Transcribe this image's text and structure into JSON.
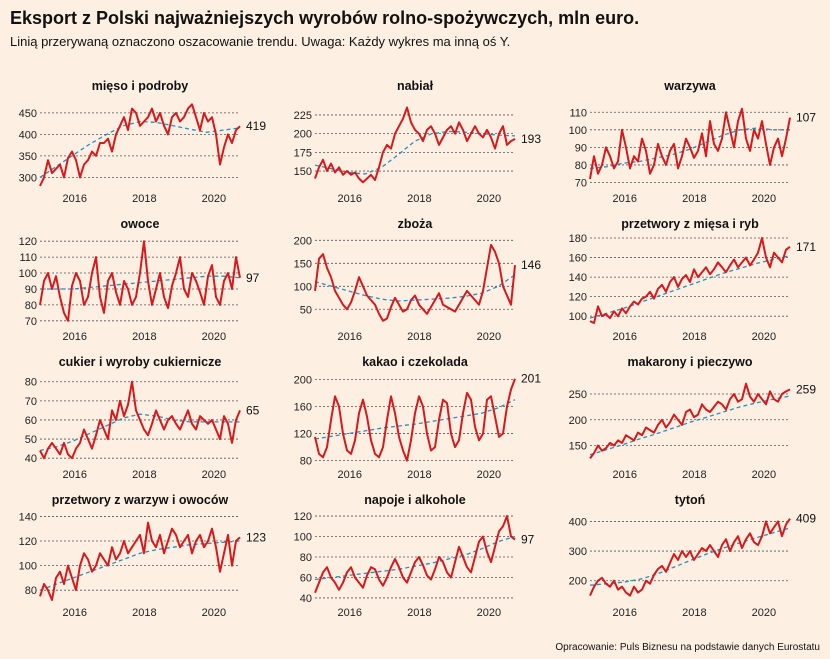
{
  "header": {
    "title": "Eksport z Polski najważniejszych wyrobów rolno-spożywczych, mln euro.",
    "subtitle": "Linią przerywaną oznaczono oszacowanie trendu. Uwaga: Każdy wykres ma inną oś Y."
  },
  "footer": {
    "source": "Opracowanie: Puls Biznesu na podstawie danych Eurostatu"
  },
  "colors": {
    "series": "#d7191c",
    "trend": "#2b8cbe",
    "grid": "#555555",
    "background": "#fdf0e3"
  },
  "chart_data": [
    {
      "type": "line",
      "title": "mięso i podroby",
      "x_range": [
        2015,
        2020.75
      ],
      "xticks": [
        "2016",
        "2018",
        "2020"
      ],
      "ylim": [
        280,
        480
      ],
      "yticks": [
        "300",
        "350",
        "400",
        "450"
      ],
      "last_label": "419",
      "values": [
        280,
        300,
        340,
        310,
        320,
        330,
        300,
        345,
        360,
        340,
        300,
        330,
        340,
        360,
        350,
        380,
        380,
        390,
        360,
        400,
        420,
        440,
        410,
        460,
        450,
        420,
        430,
        440,
        460,
        430,
        450,
        420,
        400,
        440,
        450,
        430,
        440,
        460,
        470,
        440,
        410,
        450,
        430,
        440,
        400,
        330,
        370,
        400,
        380,
        410,
        419
      ],
      "trend": [
        300,
        326,
        352,
        378,
        400,
        420,
        430,
        428,
        420,
        412,
        405,
        410,
        415
      ]
    },
    {
      "type": "line",
      "title": "nabiał",
      "x_range": [
        2015,
        2020.75
      ],
      "xticks": [
        "2016",
        "2018",
        "2020"
      ],
      "ylim": [
        130,
        245
      ],
      "yticks": [
        "150",
        "175",
        "200",
        "225"
      ],
      "last_label": "193",
      "values": [
        140,
        155,
        165,
        150,
        160,
        148,
        155,
        145,
        150,
        145,
        148,
        140,
        135,
        140,
        145,
        138,
        155,
        175,
        185,
        180,
        200,
        210,
        220,
        235,
        215,
        205,
        200,
        190,
        205,
        210,
        200,
        185,
        195,
        205,
        210,
        200,
        215,
        205,
        190,
        200,
        210,
        200,
        195,
        205,
        195,
        180,
        200,
        210,
        185,
        190,
        193
      ],
      "trend": [
        158,
        153,
        148,
        146,
        155,
        172,
        190,
        200,
        203,
        202,
        200,
        198,
        197
      ]
    },
    {
      "type": "line",
      "title": "warzywa",
      "x_range": [
        2015,
        2020.75
      ],
      "xticks": [
        "2016",
        "2018",
        "2020"
      ],
      "ylim": [
        68,
        117
      ],
      "yticks": [
        "70",
        "80",
        "90",
        "100",
        "110"
      ],
      "last_label": "107",
      "values": [
        72,
        85,
        75,
        80,
        90,
        85,
        78,
        82,
        100,
        90,
        78,
        85,
        82,
        95,
        88,
        75,
        80,
        92,
        85,
        80,
        88,
        92,
        78,
        85,
        95,
        90,
        84,
        88,
        98,
        85,
        105,
        92,
        88,
        95,
        110,
        100,
        90,
        105,
        112,
        95,
        88,
        100,
        95,
        105,
        92,
        80,
        90,
        95,
        85,
        95,
        107
      ],
      "trend": [
        78,
        79,
        81,
        82,
        84,
        86,
        89,
        93,
        97,
        100,
        101,
        100,
        100
      ]
    },
    {
      "type": "line",
      "title": "owoce",
      "x_range": [
        2015,
        2020.75
      ],
      "xticks": [
        "2016",
        "2018",
        "2020"
      ],
      "ylim": [
        68,
        122
      ],
      "yticks": [
        "70",
        "80",
        "90",
        "100",
        "110",
        "120"
      ],
      "last_label": "97",
      "values": [
        80,
        95,
        100,
        90,
        98,
        85,
        75,
        70,
        92,
        100,
        95,
        80,
        85,
        100,
        110,
        85,
        75,
        95,
        100,
        88,
        80,
        95,
        90,
        80,
        85,
        100,
        120,
        95,
        80,
        90,
        100,
        85,
        78,
        92,
        100,
        110,
        90,
        85,
        100,
        95,
        88,
        80,
        98,
        105,
        85,
        80,
        95,
        100,
        90,
        110,
        97
      ],
      "trend": [
        90,
        90,
        90,
        91,
        92,
        93,
        94,
        95,
        96,
        97,
        98,
        98,
        97
      ]
    },
    {
      "type": "line",
      "title": "zboża",
      "x_range": [
        2015,
        2020.75
      ],
      "xticks": [
        "2016",
        "2018",
        "2020"
      ],
      "ylim": [
        18,
        205
      ],
      "yticks": [
        "50",
        "100",
        "150",
        "200"
      ],
      "last_label": "146",
      "values": [
        90,
        160,
        170,
        140,
        120,
        90,
        75,
        60,
        50,
        65,
        90,
        120,
        100,
        80,
        70,
        60,
        40,
        25,
        30,
        55,
        75,
        60,
        45,
        50,
        70,
        80,
        60,
        50,
        40,
        55,
        70,
        85,
        60,
        55,
        50,
        45,
        60,
        75,
        90,
        80,
        70,
        60,
        90,
        140,
        190,
        175,
        150,
        100,
        80,
        60,
        146
      ],
      "trend": [
        110,
        100,
        90,
        80,
        72,
        68,
        70,
        72,
        74,
        78,
        85,
        100,
        125
      ]
    },
    {
      "type": "line",
      "title": "przetwory z mięsa i ryb",
      "x_range": [
        2015,
        2020.75
      ],
      "xticks": [
        "2016",
        "2018",
        "2020"
      ],
      "ylim": [
        92,
        180
      ],
      "yticks": [
        "100",
        "120",
        "140",
        "160",
        "180"
      ],
      "last_label": "171",
      "values": [
        95,
        93,
        110,
        100,
        102,
        98,
        105,
        100,
        108,
        103,
        110,
        115,
        112,
        118,
        120,
        125,
        118,
        128,
        132,
        125,
        135,
        140,
        130,
        138,
        142,
        135,
        148,
        140,
        145,
        150,
        143,
        148,
        155,
        150,
        145,
        152,
        158,
        150,
        155,
        160,
        152,
        158,
        165,
        180,
        160,
        150,
        165,
        160,
        155,
        168,
        171
      ],
      "trend": [
        98,
        103,
        108,
        114,
        120,
        126,
        132,
        138,
        144,
        149,
        154,
        158,
        162
      ]
    },
    {
      "type": "line",
      "title": "cukier i wyroby cukiernicze",
      "x_range": [
        2015,
        2020.75
      ],
      "xticks": [
        "2016",
        "2018",
        "2020"
      ],
      "ylim": [
        38,
        83
      ],
      "yticks": [
        "40",
        "50",
        "60",
        "70",
        "80"
      ],
      "last_label": "65",
      "values": [
        44,
        40,
        45,
        48,
        45,
        42,
        48,
        42,
        40,
        45,
        48,
        55,
        50,
        45,
        52,
        60,
        55,
        50,
        65,
        60,
        70,
        62,
        68,
        80,
        65,
        60,
        55,
        52,
        58,
        65,
        60,
        55,
        60,
        62,
        58,
        55,
        60,
        65,
        58,
        55,
        62,
        60,
        58,
        60,
        55,
        50,
        62,
        58,
        48,
        60,
        65
      ],
      "trend": [
        44,
        46,
        49,
        53,
        57,
        61,
        63,
        62,
        60,
        59,
        59,
        59,
        59
      ]
    },
    {
      "type": "line",
      "title": "kakao i czekolada",
      "x_range": [
        2015,
        2020.75
      ],
      "xticks": [
        "2016",
        "2018",
        "2020"
      ],
      "ylim": [
        78,
        205
      ],
      "yticks": [
        "80",
        "120",
        "160",
        "200"
      ],
      "last_label": "201",
      "values": [
        115,
        90,
        85,
        100,
        140,
        175,
        160,
        120,
        95,
        90,
        110,
        150,
        170,
        145,
        110,
        90,
        85,
        100,
        140,
        175,
        150,
        115,
        95,
        80,
        110,
        150,
        175,
        160,
        120,
        95,
        100,
        140,
        170,
        165,
        120,
        100,
        110,
        150,
        180,
        170,
        130,
        110,
        120,
        170,
        175,
        145,
        115,
        120,
        160,
        185,
        201
      ],
      "trend": [
        112,
        116,
        120,
        124,
        128,
        131,
        134,
        138,
        142,
        146,
        150,
        158,
        170
      ]
    },
    {
      "type": "line",
      "title": "makarony i pieczywo",
      "x_range": [
        2015,
        2020.75
      ],
      "xticks": [
        "2016",
        "2018",
        "2020"
      ],
      "ylim": [
        118,
        285
      ],
      "yticks": [
        "150",
        "200",
        "250"
      ],
      "last_label": "259",
      "values": [
        125,
        135,
        150,
        140,
        145,
        155,
        150,
        160,
        155,
        170,
        165,
        160,
        175,
        170,
        185,
        180,
        175,
        190,
        200,
        185,
        195,
        210,
        200,
        190,
        215,
        220,
        205,
        210,
        230,
        220,
        215,
        225,
        235,
        230,
        220,
        240,
        250,
        235,
        240,
        270,
        245,
        235,
        250,
        240,
        230,
        255,
        240,
        235,
        250,
        255,
        259
      ],
      "trend": [
        132,
        142,
        152,
        163,
        173,
        184,
        195,
        205,
        215,
        225,
        233,
        240,
        246
      ]
    },
    {
      "type": "line",
      "title": "przetwory z warzyw i owoców",
      "x_range": [
        2015,
        2020.75
      ],
      "xticks": [
        "2016",
        "2018",
        "2020"
      ],
      "ylim": [
        72,
        142
      ],
      "yticks": [
        "80",
        "100",
        "120",
        "140"
      ],
      "last_label": "123",
      "values": [
        75,
        85,
        80,
        72,
        90,
        95,
        85,
        100,
        90,
        80,
        100,
        110,
        105,
        95,
        100,
        110,
        105,
        100,
        115,
        105,
        110,
        120,
        110,
        115,
        120,
        125,
        110,
        135,
        120,
        115,
        125,
        110,
        120,
        130,
        125,
        115,
        120,
        125,
        110,
        120,
        125,
        115,
        120,
        130,
        115,
        95,
        110,
        125,
        100,
        120,
        123
      ],
      "trend": [
        80,
        85,
        90,
        95,
        100,
        105,
        110,
        113,
        115,
        117,
        118,
        119,
        120
      ]
    },
    {
      "type": "line",
      "title": "napoje i alkohole",
      "x_range": [
        2015,
        2020.75
      ],
      "xticks": [
        "2016",
        "2018",
        "2020"
      ],
      "ylim": [
        38,
        122
      ],
      "yticks": [
        "40",
        "60",
        "80",
        "100",
        "120"
      ],
      "last_label": "97",
      "values": [
        45,
        55,
        65,
        70,
        60,
        55,
        48,
        55,
        65,
        70,
        60,
        55,
        50,
        62,
        70,
        68,
        58,
        52,
        60,
        70,
        78,
        70,
        60,
        55,
        65,
        75,
        80,
        72,
        62,
        58,
        68,
        80,
        75,
        65,
        60,
        75,
        90,
        80,
        70,
        65,
        80,
        95,
        100,
        85,
        75,
        90,
        105,
        110,
        120,
        100,
        97
      ],
      "trend": [
        58,
        60,
        62,
        64,
        66,
        68,
        71,
        74,
        78,
        82,
        88,
        95,
        100
      ]
    },
    {
      "type": "line",
      "title": "tytoń",
      "x_range": [
        2015,
        2020.75
      ],
      "xticks": [
        "2016",
        "2018",
        "2020"
      ],
      "ylim": [
        135,
        425
      ],
      "yticks": [
        "200",
        "300",
        "400"
      ],
      "last_label": "409",
      "values": [
        150,
        180,
        200,
        210,
        190,
        180,
        200,
        170,
        180,
        160,
        150,
        180,
        160,
        170,
        200,
        190,
        220,
        240,
        250,
        230,
        260,
        290,
        270,
        300,
        280,
        300,
        270,
        290,
        310,
        300,
        320,
        300,
        280,
        320,
        340,
        300,
        330,
        350,
        310,
        340,
        360,
        330,
        320,
        350,
        400,
        360,
        380,
        400,
        350,
        390,
        409
      ],
      "trend": [
        185,
        190,
        195,
        205,
        222,
        245,
        268,
        290,
        310,
        328,
        345,
        362,
        378
      ]
    }
  ]
}
